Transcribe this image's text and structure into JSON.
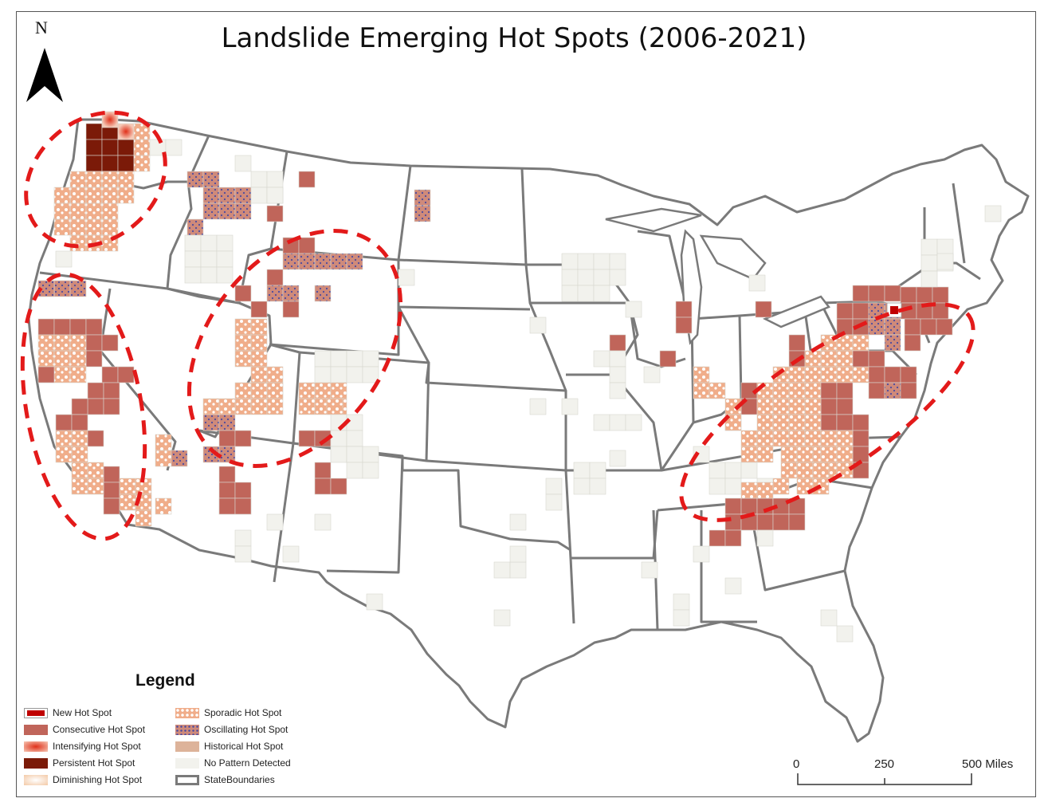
{
  "title": "Landslide Emerging Hot Spots (2006-2021)",
  "north_arrow": {
    "label": "N",
    "icon": "north-arrow-icon"
  },
  "colors": {
    "new": "#c00000",
    "consecutive": "#c0655a",
    "intensifying": "#e6553a",
    "persistent": "#7b1a08",
    "diminishing": "#f3c9a6",
    "sporadic": "#f0ad8a",
    "oscillating": "#cf8a7a",
    "historical": "#ddb39a",
    "no_pattern": "#f2f2ed",
    "boundary": "#7a7a7a",
    "cluster_ellipse": "#e31a1a"
  },
  "legend": {
    "title": "Legend",
    "items": [
      {
        "label": "New Hot Spot",
        "key": "new"
      },
      {
        "label": "Consecutive Hot Spot",
        "key": "consecutive"
      },
      {
        "label": "Intensifying Hot Spot",
        "key": "intensifying"
      },
      {
        "label": "Persistent Hot Spot",
        "key": "persistent"
      },
      {
        "label": "Diminishing Hot Spot",
        "key": "diminishing"
      },
      {
        "label": "Sporadic Hot Spot",
        "key": "sporadic"
      },
      {
        "label": "Oscillating Hot Spot",
        "key": "oscillating"
      },
      {
        "label": "Historical Hot Spot",
        "key": "historical"
      },
      {
        "label": "No Pattern Detected",
        "key": "no_pattern"
      },
      {
        "label": "StateBoundaries",
        "key": "boundary"
      }
    ]
  },
  "scale_bar": {
    "labels": [
      "0",
      "250",
      "500 Miles"
    ]
  }
}
